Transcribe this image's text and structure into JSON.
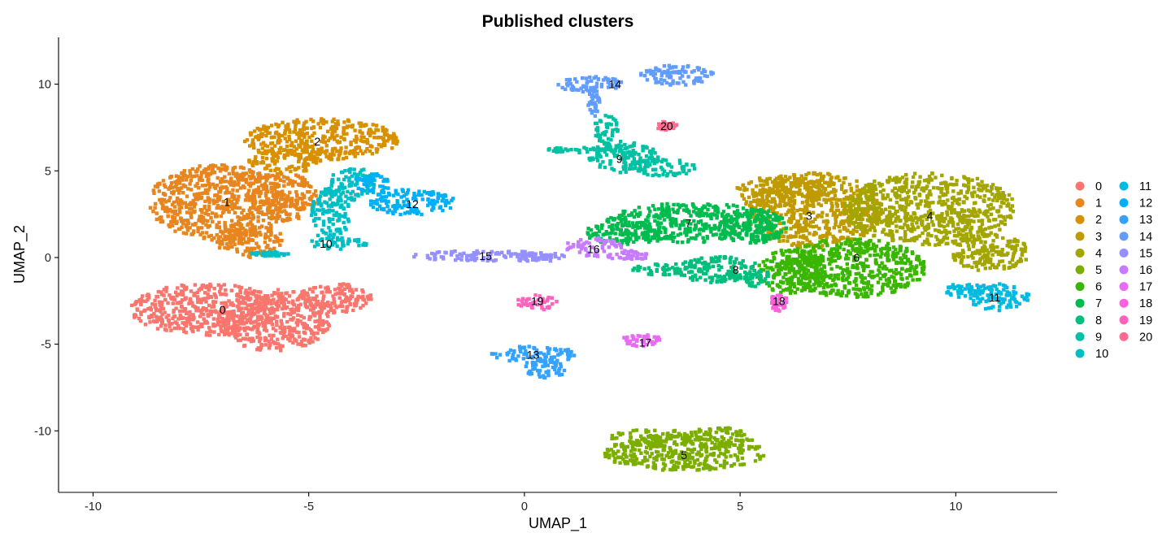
{
  "chart_data": {
    "type": "scatter",
    "title": "Published clusters",
    "xlabel": "UMAP_1",
    "ylabel": "UMAP_2",
    "xlim": [
      -10.8,
      12.35
    ],
    "ylim": [
      -13.55,
      12.7
    ],
    "xticks": [
      -10,
      -5,
      0,
      5,
      10
    ],
    "yticks": [
      -10,
      -5,
      0,
      5,
      10
    ],
    "grid": false,
    "legend_position": "right",
    "clusters": [
      {
        "name": "0",
        "color": "#F8766D",
        "centroid": [
          -7.0,
          -3.0
        ],
        "regions": [
          [
            -7.4,
            -3.0,
            1.75,
            1.5
          ],
          [
            -5.8,
            -3.6,
            1.3,
            1.8
          ],
          [
            -4.4,
            -2.4,
            0.9,
            0.9
          ]
        ]
      },
      {
        "name": "1",
        "color": "#E7851E",
        "centroid": [
          -6.9,
          3.2
        ],
        "regions": [
          [
            -7.1,
            3.2,
            1.6,
            2.2
          ],
          [
            -6.4,
            1.0,
            0.8,
            1.0
          ],
          [
            -5.6,
            3.5,
            0.8,
            1.4
          ]
        ]
      },
      {
        "name": "2",
        "color": "#D89000",
        "centroid": [
          -4.8,
          6.7
        ],
        "regions": [
          [
            -4.7,
            6.8,
            1.8,
            1.2
          ],
          [
            -5.5,
            5.6,
            0.9,
            0.7
          ]
        ]
      },
      {
        "name": "3",
        "color": "#C09B00",
        "centroid": [
          6.6,
          2.4
        ],
        "regions": [
          [
            6.7,
            2.7,
            1.6,
            2.2
          ],
          [
            5.9,
            3.8,
            1.0,
            0.9
          ]
        ]
      },
      {
        "name": "4",
        "color": "#A3A500",
        "centroid": [
          9.4,
          2.4
        ],
        "regions": [
          [
            9.4,
            2.8,
            2.0,
            2.1
          ],
          [
            10.8,
            0.3,
            0.9,
            1.1
          ]
        ]
      },
      {
        "name": "5",
        "color": "#7CAE00",
        "centroid": [
          3.7,
          -11.4
        ],
        "regions": [
          [
            3.7,
            -11.3,
            1.9,
            1.0
          ],
          [
            3.0,
            -10.4,
            1.0,
            0.5
          ],
          [
            4.5,
            -10.4,
            0.8,
            0.6
          ]
        ]
      },
      {
        "name": "6",
        "color": "#39B600",
        "centroid": [
          7.7,
          0.0
        ],
        "regions": [
          [
            7.6,
            -0.6,
            1.7,
            1.7
          ],
          [
            6.2,
            -0.8,
            0.8,
            1.3
          ]
        ]
      },
      {
        "name": "7",
        "color": "#00BB4E",
        "centroid": [
          3.8,
          2.0
        ],
        "regions": [
          [
            3.9,
            2.0,
            2.0,
            1.15
          ],
          [
            2.3,
            1.4,
            0.9,
            0.7
          ],
          [
            5.3,
            1.8,
            0.8,
            1.0
          ]
        ]
      },
      {
        "name": "8",
        "color": "#00BF7D",
        "centroid": [
          4.9,
          -0.7
        ],
        "regions": [
          [
            4.5,
            -0.7,
            1.0,
            0.75
          ],
          [
            3.3,
            -0.7,
            0.8,
            0.35
          ],
          [
            5.2,
            -1.2,
            0.6,
            0.5
          ]
        ]
      },
      {
        "name": "9",
        "color": "#00C1A3",
        "centroid": [
          2.2,
          5.7
        ],
        "regions": [
          [
            2.3,
            5.8,
            0.8,
            0.9
          ],
          [
            3.2,
            5.2,
            0.8,
            0.5
          ],
          [
            1.3,
            6.2,
            0.9,
            0.15
          ],
          [
            1.9,
            7.3,
            0.3,
            0.9
          ]
        ]
      },
      {
        "name": "10",
        "color": "#00BFC4",
        "centroid": [
          -4.6,
          0.8
        ],
        "regions": [
          [
            -4.3,
            0.8,
            0.7,
            0.35
          ],
          [
            -4.5,
            2.5,
            0.45,
            1.6
          ],
          [
            -4.0,
            4.3,
            0.55,
            1.0
          ],
          [
            -5.9,
            0.2,
            0.45,
            0.12
          ]
        ]
      },
      {
        "name": "11",
        "color": "#00BAE0",
        "centroid": [
          10.9,
          -2.3
        ],
        "regions": [
          [
            11.0,
            -2.3,
            0.7,
            0.8
          ],
          [
            10.2,
            -1.9,
            0.5,
            0.4
          ]
        ]
      },
      {
        "name": "12",
        "color": "#00B0F6",
        "centroid": [
          -2.6,
          3.1
        ],
        "regions": [
          [
            -2.6,
            3.2,
            1.0,
            0.75
          ],
          [
            -3.5,
            4.3,
            0.45,
            0.55
          ]
        ]
      },
      {
        "name": "13",
        "color": "#35A2FF",
        "centroid": [
          0.2,
          -5.6
        ],
        "regions": [
          [
            0.2,
            -5.6,
            1.0,
            0.5
          ],
          [
            0.5,
            -6.4,
            0.5,
            0.6
          ]
        ]
      },
      {
        "name": "14",
        "color": "#619CFF",
        "centroid": [
          2.1,
          10.0
        ],
        "regions": [
          [
            1.5,
            10.0,
            0.8,
            0.45
          ],
          [
            3.5,
            10.5,
            0.9,
            0.6
          ],
          [
            1.6,
            9.0,
            0.15,
            0.9
          ]
        ]
      },
      {
        "name": "15",
        "color": "#9590FF",
        "centroid": [
          -0.9,
          0.1
        ],
        "regions": [
          [
            -0.9,
            0.1,
            1.9,
            0.3
          ],
          [
            0.3,
            0.0,
            0.6,
            0.25
          ]
        ]
      },
      {
        "name": "16",
        "color": "#C77CFF",
        "centroid": [
          1.6,
          0.5
        ],
        "regions": [
          [
            1.6,
            0.6,
            0.65,
            0.55
          ],
          [
            2.4,
            0.1,
            0.5,
            0.3
          ]
        ]
      },
      {
        "name": "17",
        "color": "#E76BF3",
        "centroid": [
          2.8,
          -4.9
        ],
        "regions": [
          [
            2.7,
            -4.8,
            0.5,
            0.35
          ]
        ]
      },
      {
        "name": "18",
        "color": "#FA62DB",
        "centroid": [
          5.9,
          -2.5
        ],
        "regions": [
          [
            5.9,
            -2.6,
            0.2,
            0.5
          ]
        ]
      },
      {
        "name": "19",
        "color": "#FF62BC",
        "centroid": [
          0.3,
          -2.5
        ],
        "regions": [
          [
            0.3,
            -2.6,
            0.5,
            0.45
          ]
        ]
      },
      {
        "name": "20",
        "color": "#FF6C91",
        "centroid": [
          3.3,
          7.6
        ],
        "regions": [
          [
            3.3,
            7.6,
            0.25,
            0.25
          ]
        ]
      }
    ]
  }
}
